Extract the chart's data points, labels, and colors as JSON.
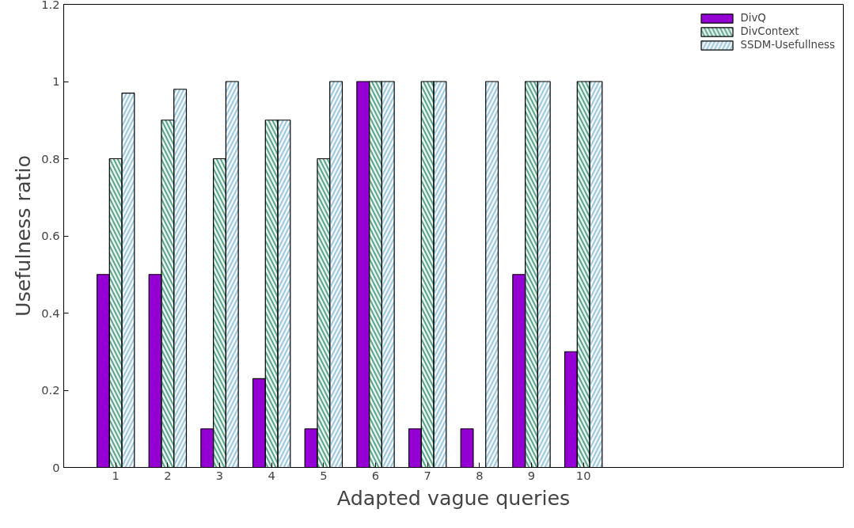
{
  "chart_data": {
    "type": "bar",
    "xlabel": "Adapted vague queries",
    "ylabel": "Usefulness ratio",
    "x": [
      1,
      2,
      3,
      4,
      5,
      6,
      7,
      8,
      9,
      10
    ],
    "series": [
      {
        "name": "DivQ",
        "color": "#9400d3",
        "values": [
          0.5,
          0.5,
          0.1,
          0.23,
          0.1,
          1,
          0.1,
          0.1,
          0.5,
          0.3
        ]
      },
      {
        "name": "DivContext",
        "color": "#5aa58c",
        "values": [
          0.8,
          0.9,
          0.8,
          0.9,
          0.8,
          1,
          1,
          null,
          1,
          1
        ]
      },
      {
        "name": "SSDM-Usefullness",
        "color": "#9ec8dc",
        "values": [
          0.97,
          0.98,
          1,
          0.9,
          1,
          1,
          1,
          1,
          1,
          1
        ]
      }
    ],
    "xlim": [
      0,
      15
    ],
    "xticks": [
      1,
      2,
      3,
      4,
      5,
      6,
      7,
      8,
      9,
      10
    ],
    "ylim": [
      0,
      1.2
    ],
    "yticks": [
      0,
      0.2,
      0.4,
      0.6,
      0.8,
      1,
      1.2
    ],
    "grid": false,
    "legend": "top right"
  }
}
